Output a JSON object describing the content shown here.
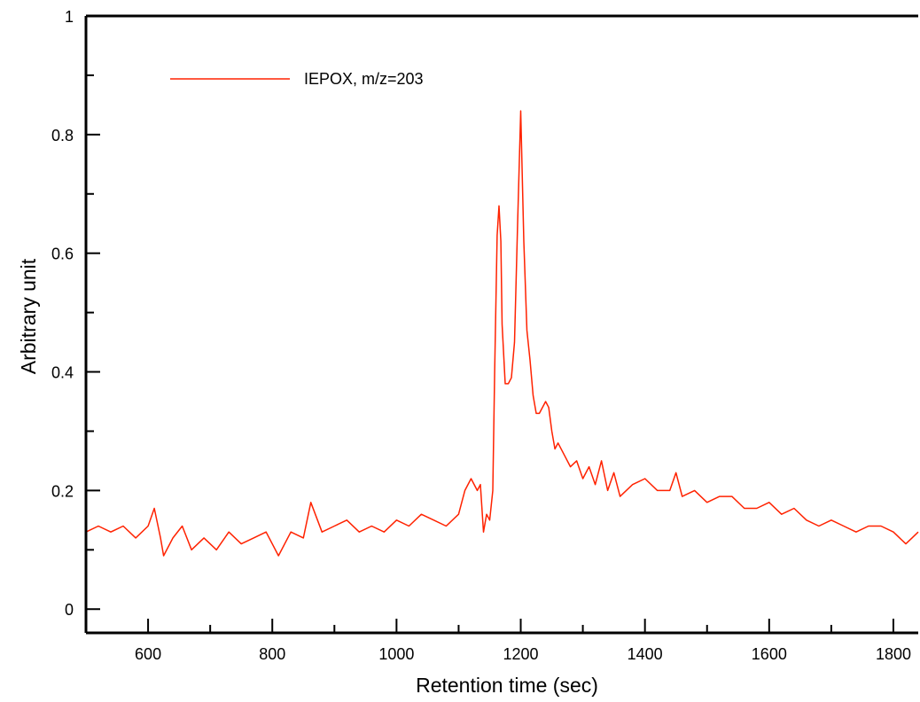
{
  "chart_data": {
    "type": "line",
    "title": "",
    "xlabel": "Retention time (sec)",
    "ylabel": "Arbitrary unit",
    "xlim": [
      500,
      1840
    ],
    "ylim": [
      -0.04,
      1.0
    ],
    "x_ticks": [
      600,
      800,
      1000,
      1200,
      1400,
      1600,
      1800
    ],
    "x_tick_labels": [
      "600",
      "800",
      "1000",
      "1200",
      "1400",
      "1600",
      "1800"
    ],
    "y_ticks": [
      0,
      0.2,
      0.4,
      0.6,
      0.8,
      1
    ],
    "y_tick_labels": [
      "0",
      "0.2",
      "0.4",
      "0.6",
      "0.8",
      "1"
    ],
    "grid": false,
    "legend_position": "top-left",
    "colors": {
      "series": "#ff2200",
      "axis": "#000000"
    },
    "series": [
      {
        "name": "IEPOX, m/z=203",
        "x": [
          500,
          520,
          540,
          560,
          580,
          600,
          610,
          620,
          625,
          640,
          655,
          670,
          690,
          710,
          730,
          750,
          770,
          790,
          810,
          830,
          850,
          862,
          880,
          900,
          920,
          940,
          960,
          980,
          1000,
          1020,
          1040,
          1060,
          1080,
          1100,
          1110,
          1120,
          1130,
          1135,
          1140,
          1145,
          1150,
          1155,
          1158,
          1162,
          1165,
          1168,
          1170,
          1175,
          1180,
          1185,
          1190,
          1195,
          1200,
          1205,
          1210,
          1215,
          1220,
          1225,
          1230,
          1240,
          1245,
          1250,
          1255,
          1260,
          1270,
          1280,
          1290,
          1300,
          1310,
          1320,
          1330,
          1340,
          1350,
          1360,
          1380,
          1400,
          1420,
          1440,
          1450,
          1460,
          1480,
          1500,
          1520,
          1540,
          1560,
          1580,
          1600,
          1620,
          1640,
          1660,
          1680,
          1700,
          1720,
          1740,
          1760,
          1780,
          1800,
          1820,
          1830,
          1840
        ],
        "y": [
          0.13,
          0.14,
          0.13,
          0.14,
          0.12,
          0.14,
          0.17,
          0.12,
          0.09,
          0.12,
          0.14,
          0.1,
          0.12,
          0.1,
          0.13,
          0.11,
          0.12,
          0.13,
          0.09,
          0.13,
          0.12,
          0.18,
          0.13,
          0.14,
          0.15,
          0.13,
          0.14,
          0.13,
          0.15,
          0.14,
          0.16,
          0.15,
          0.14,
          0.16,
          0.2,
          0.22,
          0.2,
          0.21,
          0.13,
          0.16,
          0.15,
          0.2,
          0.4,
          0.63,
          0.68,
          0.62,
          0.48,
          0.38,
          0.38,
          0.39,
          0.45,
          0.65,
          0.84,
          0.62,
          0.47,
          0.42,
          0.36,
          0.33,
          0.33,
          0.35,
          0.34,
          0.3,
          0.27,
          0.28,
          0.26,
          0.24,
          0.25,
          0.22,
          0.24,
          0.21,
          0.25,
          0.2,
          0.23,
          0.19,
          0.21,
          0.22,
          0.2,
          0.2,
          0.23,
          0.19,
          0.2,
          0.18,
          0.19,
          0.19,
          0.17,
          0.17,
          0.18,
          0.16,
          0.17,
          0.15,
          0.14,
          0.15,
          0.14,
          0.13,
          0.14,
          0.14,
          0.13,
          0.11,
          0.12,
          0.13
        ]
      }
    ]
  }
}
